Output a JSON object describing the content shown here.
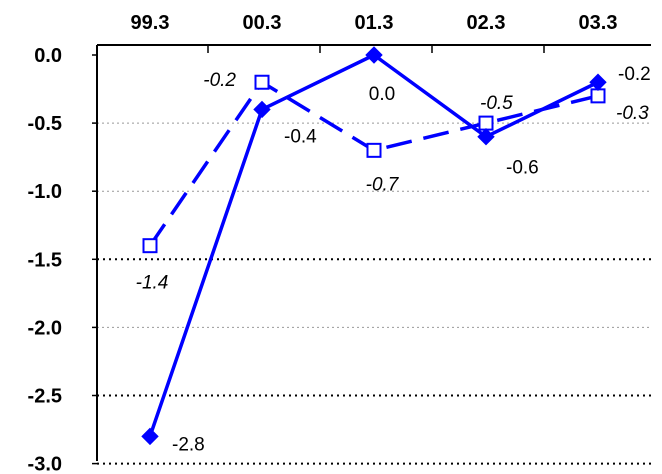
{
  "chart_data": {
    "type": "line",
    "title": "",
    "xlabel": "",
    "ylabel": "",
    "categories": [
      "99.3",
      "00.3",
      "01.3",
      "02.3",
      "03.3"
    ],
    "ylim": [
      -3.0,
      0.0
    ],
    "ytick_labels": [
      "0.0",
      "-0.5",
      "-1.0",
      "-1.5",
      "-2.0",
      "-2.5",
      "-3.0"
    ],
    "ytick_values": [
      0.0,
      -0.5,
      -1.0,
      -1.5,
      -2.0,
      -2.5,
      -3.0
    ],
    "x_axis_position": "top",
    "grid": "horizontal-dotted",
    "series": [
      {
        "color": "#0000ff",
        "line_style": "solid",
        "marker": "filled-diamond",
        "values": [
          -2.8,
          -0.4,
          0.0,
          -0.6,
          -0.2
        ],
        "labels": [
          "-2.8",
          "-0.4",
          "0.0",
          "-0.6",
          "-0.2"
        ]
      },
      {
        "color": "#0000ff",
        "line_style": "dashed",
        "marker": "hollow-square",
        "values": [
          -1.4,
          -0.2,
          -0.7,
          -0.5,
          -0.3
        ],
        "labels": [
          "-1.4",
          "-0.2",
          "-0.7",
          "-0.5",
          "-0.3"
        ]
      }
    ]
  }
}
